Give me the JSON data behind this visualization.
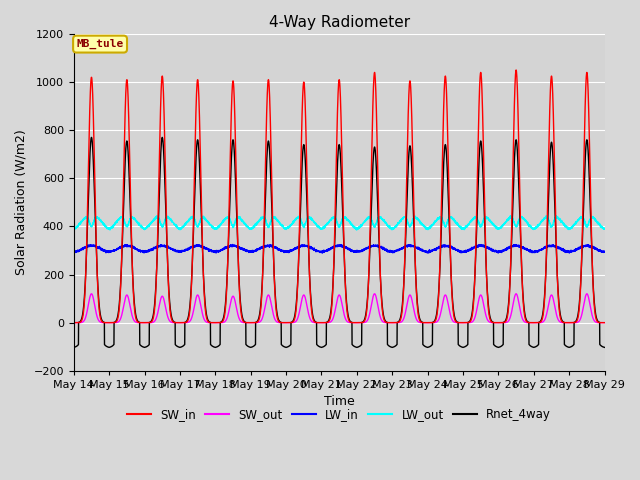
{
  "title": "4-Way Radiometer",
  "xlabel": "Time",
  "ylabel": "Solar Radiation (W/m2)",
  "ylim": [
    -200,
    1200
  ],
  "yticks": [
    -200,
    0,
    200,
    400,
    600,
    800,
    1000,
    1200
  ],
  "station_label": "MB_tule",
  "n_days": 15,
  "start_day": 14,
  "pts_per_day": 288,
  "SW_in_peak": [
    1020,
    1010,
    1025,
    1010,
    1005,
    1010,
    1000,
    1010,
    1040,
    1005,
    1025,
    1040,
    1050,
    1025,
    1040
  ],
  "SW_out_peak": [
    120,
    115,
    110,
    115,
    110,
    115,
    115,
    115,
    120,
    115,
    115,
    115,
    120,
    115,
    120
  ],
  "LW_in_base": 295,
  "LW_out_base": 390,
  "LW_out_day_peak": 450,
  "LW_out_dip": 360,
  "Rnet_peak": [
    770,
    755,
    770,
    760,
    760,
    755,
    740,
    740,
    730,
    735,
    740,
    755,
    760,
    750,
    760
  ],
  "Rnet_night": -105,
  "colors": {
    "SW_in": "#ff0000",
    "SW_out": "#ff00ff",
    "LW_in": "#0000ff",
    "LW_out": "#00ffff",
    "Rnet_4way": "#000000"
  },
  "fig_bg": "#d8d8d8",
  "plot_bg": "#d4d4d4",
  "grid_color": "#ffffff",
  "title_fontsize": 11,
  "label_fontsize": 9,
  "tick_fontsize": 8,
  "linewidth": 1.0
}
